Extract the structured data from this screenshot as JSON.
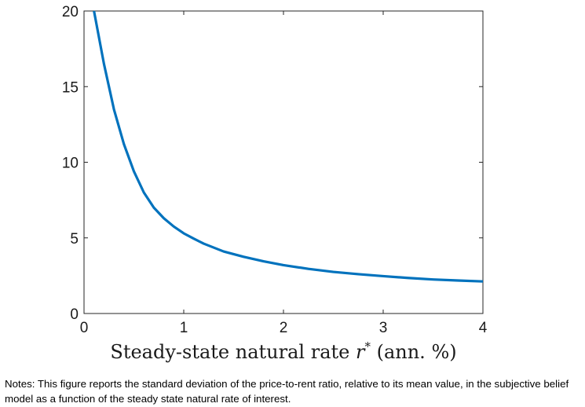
{
  "chart_data": {
    "type": "line",
    "title": "",
    "xlabel": {
      "prefix": "Steady-state natural rate ",
      "symbol": "r",
      "superscript": "*",
      "suffix": " (ann. %)"
    },
    "ylabel": "",
    "xlim": [
      0,
      4
    ],
    "ylim": [
      0,
      20
    ],
    "xticks": [
      0,
      1,
      2,
      3,
      4
    ],
    "yticks": [
      0,
      5,
      10,
      15,
      20
    ],
    "xtick_labels": [
      "0",
      "1",
      "2",
      "3",
      "4"
    ],
    "ytick_labels": [
      "0",
      "5",
      "10",
      "15",
      "20"
    ],
    "grid": false,
    "line_color": "#0072bd",
    "series": [
      {
        "x": [
          0.1,
          0.2,
          0.3,
          0.4,
          0.5,
          0.6,
          0.7,
          0.8,
          0.9,
          1.0,
          1.1,
          1.2,
          1.4,
          1.6,
          1.8,
          2.0,
          2.25,
          2.5,
          2.75,
          3.0,
          3.25,
          3.5,
          3.75,
          4.0
        ],
        "values": [
          20.0,
          16.5,
          13.5,
          11.2,
          9.4,
          8.0,
          7.0,
          6.3,
          5.75,
          5.3,
          4.95,
          4.62,
          4.1,
          3.75,
          3.45,
          3.2,
          2.95,
          2.75,
          2.6,
          2.47,
          2.35,
          2.25,
          2.18,
          2.12
        ]
      }
    ]
  },
  "notes": "Notes: This figure reports the standard deviation of the price-to-rent ratio, relative to its mean value, in the subjective belief model as a function of the steady state natural rate of interest."
}
